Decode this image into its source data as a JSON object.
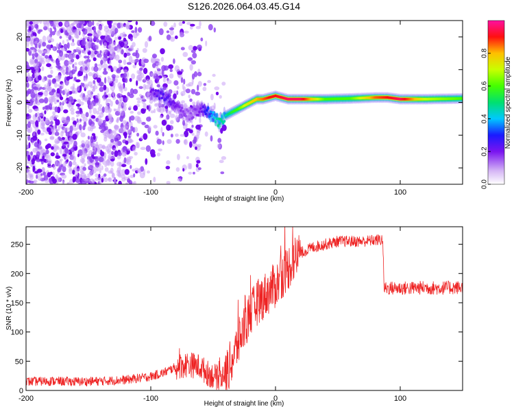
{
  "title": "S126.2026.064.03.45.G14",
  "colors": {
    "snr_line": "#ee2222",
    "background": "#ffffff",
    "axes": "#000000"
  },
  "chart_data": [
    {
      "type": "heatmap",
      "title": "S126.2026.064.03.45.G14",
      "xlabel": "Height of straight line (km)",
      "ylabel": "Frequency (Hz)",
      "xlim": [
        -200,
        150
      ],
      "ylim": [
        -25,
        25
      ],
      "x_ticks": [
        -200,
        -100,
        0,
        100
      ],
      "x_tick_labels": [
        "-200",
        "-100",
        "0",
        "100"
      ],
      "y_ticks": [
        -20,
        -10,
        0,
        10,
        20
      ],
      "y_tick_labels": [
        "-20",
        "-10",
        "0",
        "10",
        "20"
      ],
      "colorbar": {
        "label": "Normalized spectral amplitude",
        "range": [
          0,
          1
        ],
        "ticks": [
          0,
          0.2,
          0.4,
          0.6,
          0.8
        ],
        "tick_labels": [
          "0.0",
          "0.2",
          "0.4",
          "0.6",
          "0.8"
        ]
      },
      "ridge": {
        "description_points_x": [
          -100,
          -90,
          -80,
          -70,
          -60,
          -50,
          -45,
          -40,
          -35,
          -30,
          -25,
          -20,
          -15,
          -10,
          -5,
          0,
          10,
          20,
          40,
          60,
          80,
          90,
          100,
          120,
          150
        ],
        "frequency_y": [
          3,
          2,
          -1,
          -4,
          -2,
          -4,
          -6,
          -4,
          -3,
          -2,
          -1,
          0,
          1,
          1,
          1.5,
          2,
          1,
          1,
          1,
          1.2,
          1.5,
          1.5,
          1,
          1,
          1.2
        ],
        "amplitude": [
          0.2,
          0.25,
          0.2,
          0.15,
          0.2,
          0.4,
          0.5,
          0.45,
          0.55,
          0.6,
          0.7,
          0.75,
          0.8,
          0.85,
          0.9,
          0.9,
          0.95,
          0.95,
          0.6,
          0.6,
          0.85,
          0.9,
          0.95,
          0.7,
          0.6
        ]
      }
    },
    {
      "type": "line",
      "xlabel": "Height of straight line (km)",
      "ylabel": "SNR (10 * v/v)",
      "xlim": [
        -200,
        150
      ],
      "ylim": [
        0,
        280
      ],
      "x_ticks": [
        -200,
        -100,
        0,
        100
      ],
      "x_tick_labels": [
        "-200",
        "-100",
        "0",
        "100"
      ],
      "y_ticks": [
        0,
        50,
        100,
        150,
        200,
        250
      ],
      "y_tick_labels": [
        "0",
        "50",
        "100",
        "150",
        "200",
        "250"
      ],
      "series": [
        {
          "name": "SNR",
          "x": [
            -200,
            -180,
            -160,
            -140,
            -120,
            -100,
            -90,
            -80,
            -70,
            -60,
            -55,
            -50,
            -45,
            -40,
            -35,
            -30,
            -25,
            -20,
            -15,
            -10,
            -5,
            0,
            5,
            10,
            15,
            20,
            30,
            40,
            50,
            60,
            70,
            80,
            86,
            87,
            90,
            100,
            110,
            120,
            130,
            140,
            150
          ],
          "y": [
            15,
            16,
            15,
            16,
            18,
            24,
            30,
            40,
            45,
            40,
            30,
            25,
            20,
            30,
            50,
            80,
            110,
            130,
            150,
            160,
            170,
            180,
            195,
            210,
            225,
            235,
            245,
            250,
            255,
            255,
            255,
            257,
            258,
            175,
            175,
            175,
            175,
            176,
            175,
            176,
            176
          ]
        }
      ]
    }
  ]
}
